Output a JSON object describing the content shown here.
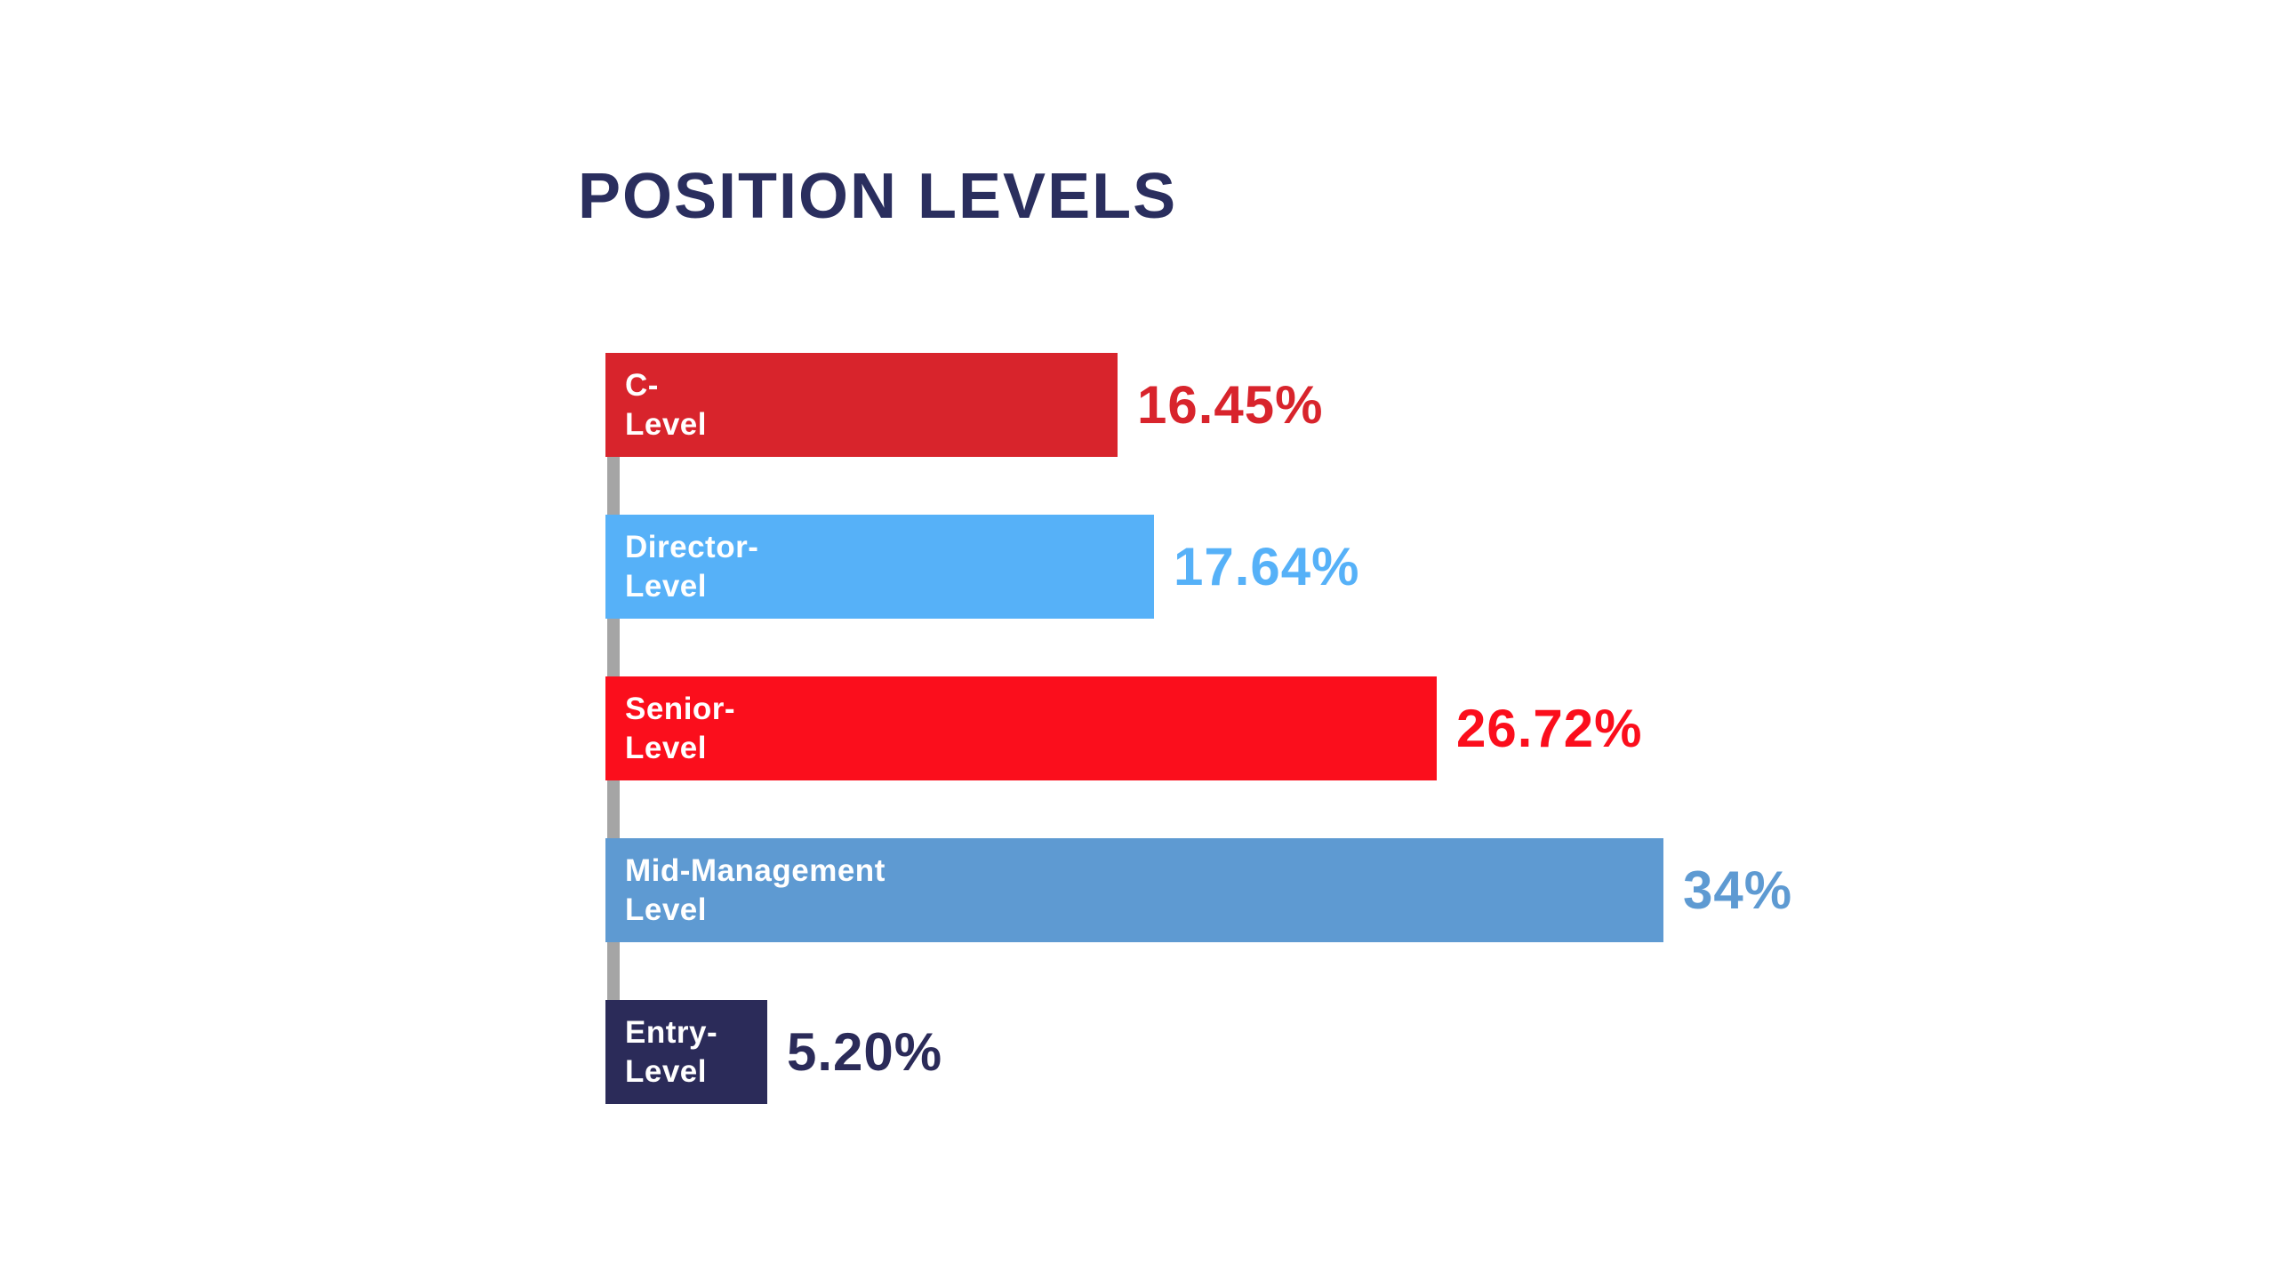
{
  "page": {
    "background_color": "#FFFFFF"
  },
  "chart": {
    "title": "POSITION LEVELS",
    "title_color": "#2A2E5E",
    "axis_line_color": "#A5A5A5",
    "bar_label_text_color": "#FFFFFF"
  },
  "chart_data": {
    "type": "bar",
    "orientation": "horizontal",
    "title": "POSITION LEVELS",
    "categories": [
      "C-Level",
      "Director-Level",
      "Senior-Level",
      "Mid-Management Level",
      "Entry-Level"
    ],
    "values": [
      16.45,
      17.64,
      26.72,
      34,
      5.2
    ],
    "value_labels": [
      "16.45%",
      "17.64%",
      "26.72%",
      "34%",
      "5.20%"
    ],
    "bar_colors": [
      "#D8242C",
      "#56B1F8",
      "#FB0E1C",
      "#5E9AD2",
      "#2B2B59"
    ],
    "xlabel": "",
    "ylabel": "",
    "xlim": [
      0,
      40
    ],
    "grid": false,
    "legend": false,
    "bars": [
      {
        "label_lines": "C-\nLevel",
        "value": 16.45,
        "value_label": "16.45%",
        "color": "#D8242C"
      },
      {
        "label_lines": "Director-\nLevel",
        "value": 17.64,
        "value_label": "17.64%",
        "color": "#56B1F8"
      },
      {
        "label_lines": "Senior-\nLevel",
        "value": 26.72,
        "value_label": "26.72%",
        "color": "#FB0E1C"
      },
      {
        "label_lines": "Mid-Management\nLevel",
        "value": 34,
        "value_label": "34%",
        "color": "#5E9AD2"
      },
      {
        "label_lines": "Entry-\nLevel",
        "value": 5.2,
        "value_label": "5.20%",
        "color": "#2B2B59"
      }
    ]
  }
}
